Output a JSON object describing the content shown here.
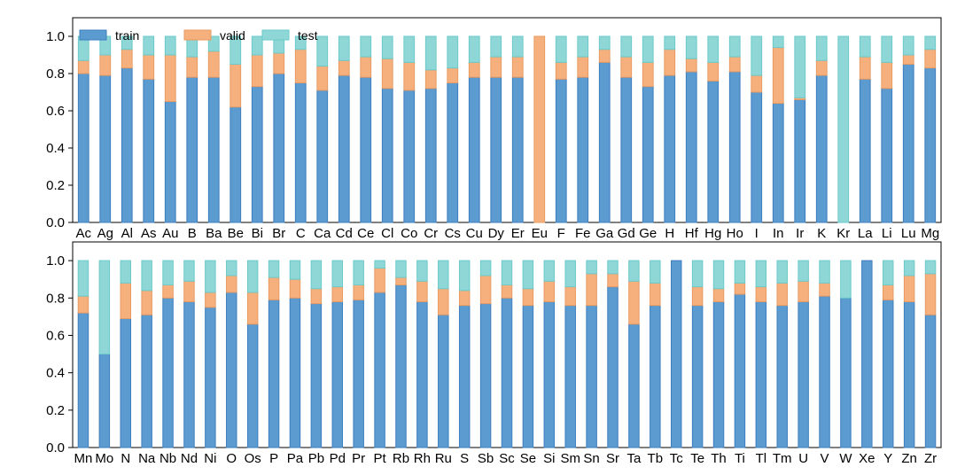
{
  "colors": {
    "train": "#5b9bd0",
    "train_edge": "#3d7fbf",
    "valid": "#f6b07e",
    "valid_edge": "#e89a62",
    "test": "#8ed7d6",
    "test_edge": "#6ccaca"
  },
  "chart_data": [
    {
      "type": "bar",
      "stacked": true,
      "title": "",
      "xlabel": "",
      "ylabel": "",
      "ylim": [
        0,
        1.1
      ],
      "yticks": [
        "0.0",
        "0.2",
        "0.4",
        "0.6",
        "0.8",
        "1.0"
      ],
      "grid": false,
      "legend": "top-left",
      "categories": [
        "Ac",
        "Ag",
        "Al",
        "As",
        "Au",
        "B",
        "Ba",
        "Be",
        "Bi",
        "Br",
        "C",
        "Ca",
        "Cd",
        "Ce",
        "Cl",
        "Co",
        "Cr",
        "Cs",
        "Cu",
        "Dy",
        "Er",
        "Eu",
        "F",
        "Fe",
        "Ga",
        "Gd",
        "Ge",
        "H",
        "Hf",
        "Hg",
        "Ho",
        "I",
        "In",
        "Ir",
        "K",
        "Kr",
        "La",
        "Li",
        "Lu",
        "Mg"
      ],
      "series": [
        {
          "name": "train",
          "values": [
            0.8,
            0.79,
            0.83,
            0.77,
            0.65,
            0.78,
            0.78,
            0.62,
            0.73,
            0.8,
            0.75,
            0.71,
            0.79,
            0.78,
            0.72,
            0.71,
            0.72,
            0.75,
            0.78,
            0.78,
            0.78,
            0.0,
            0.77,
            0.78,
            0.86,
            0.78,
            0.73,
            0.79,
            0.81,
            0.76,
            0.81,
            0.7,
            0.64,
            0.66,
            0.79,
            0.0,
            0.77,
            0.72,
            0.85,
            0.83
          ]
        },
        {
          "name": "valid",
          "values": [
            0.07,
            0.11,
            0.1,
            0.13,
            0.25,
            0.11,
            0.14,
            0.23,
            0.17,
            0.11,
            0.18,
            0.13,
            0.08,
            0.11,
            0.16,
            0.15,
            0.1,
            0.08,
            0.08,
            0.11,
            0.11,
            1.0,
            0.09,
            0.11,
            0.07,
            0.11,
            0.13,
            0.14,
            0.07,
            0.1,
            0.08,
            0.09,
            0.3,
            0.01,
            0.08,
            0.0,
            0.12,
            0.14,
            0.05,
            0.1
          ]
        },
        {
          "name": "test",
          "values": [
            0.13,
            0.1,
            0.07,
            0.1,
            0.1,
            0.11,
            0.08,
            0.15,
            0.1,
            0.09,
            0.07,
            0.16,
            0.13,
            0.11,
            0.12,
            0.14,
            0.18,
            0.17,
            0.14,
            0.11,
            0.11,
            0.0,
            0.14,
            0.11,
            0.07,
            0.11,
            0.14,
            0.07,
            0.12,
            0.14,
            0.11,
            0.21,
            0.06,
            0.33,
            0.13,
            1.0,
            0.11,
            0.14,
            0.1,
            0.07
          ]
        }
      ]
    },
    {
      "type": "bar",
      "stacked": true,
      "title": "",
      "xlabel": "",
      "ylabel": "",
      "ylim": [
        0,
        1.1
      ],
      "yticks": [
        "0.0",
        "0.2",
        "0.4",
        "0.6",
        "0.8",
        "1.0"
      ],
      "grid": false,
      "categories": [
        "Mn",
        "Mo",
        "N",
        "Na",
        "Nb",
        "Nd",
        "Ni",
        "O",
        "Os",
        "P",
        "Pa",
        "Pb",
        "Pd",
        "Pr",
        "Pt",
        "Rb",
        "Rh",
        "Ru",
        "S",
        "Sb",
        "Sc",
        "Se",
        "Si",
        "Sm",
        "Sn",
        "Sr",
        "Ta",
        "Tb",
        "Tc",
        "Te",
        "Th",
        "Ti",
        "Tl",
        "Tm",
        "U",
        "V",
        "W",
        "Xe",
        "Y",
        "Zn",
        "Zr"
      ],
      "series": [
        {
          "name": "train",
          "values": [
            0.72,
            0.5,
            0.69,
            0.71,
            0.8,
            0.78,
            0.75,
            0.83,
            0.66,
            0.79,
            0.8,
            0.77,
            0.78,
            0.79,
            0.83,
            0.87,
            0.78,
            0.71,
            0.76,
            0.77,
            0.8,
            0.76,
            0.78,
            0.76,
            0.76,
            0.86,
            0.66,
            0.76,
            1.0,
            0.76,
            0.78,
            0.82,
            0.78,
            0.76,
            0.78,
            0.81,
            0.8,
            1.0,
            0.79,
            0.78,
            0.71
          ]
        },
        {
          "name": "valid",
          "values": [
            0.09,
            0.0,
            0.19,
            0.13,
            0.07,
            0.11,
            0.08,
            0.09,
            0.17,
            0.12,
            0.1,
            0.08,
            0.08,
            0.08,
            0.13,
            0.04,
            0.11,
            0.14,
            0.08,
            0.15,
            0.07,
            0.09,
            0.11,
            0.1,
            0.17,
            0.07,
            0.23,
            0.12,
            0.0,
            0.1,
            0.07,
            0.06,
            0.08,
            0.12,
            0.11,
            0.07,
            0.0,
            0.0,
            0.08,
            0.14,
            0.22
          ]
        },
        {
          "name": "test",
          "values": [
            0.19,
            0.5,
            0.12,
            0.16,
            0.13,
            0.11,
            0.17,
            0.08,
            0.17,
            0.09,
            0.1,
            0.15,
            0.14,
            0.13,
            0.04,
            0.09,
            0.11,
            0.15,
            0.16,
            0.08,
            0.13,
            0.15,
            0.11,
            0.14,
            0.07,
            0.07,
            0.11,
            0.12,
            0.0,
            0.14,
            0.15,
            0.12,
            0.14,
            0.12,
            0.11,
            0.12,
            0.2,
            0.0,
            0.13,
            0.08,
            0.07
          ]
        }
      ]
    }
  ]
}
